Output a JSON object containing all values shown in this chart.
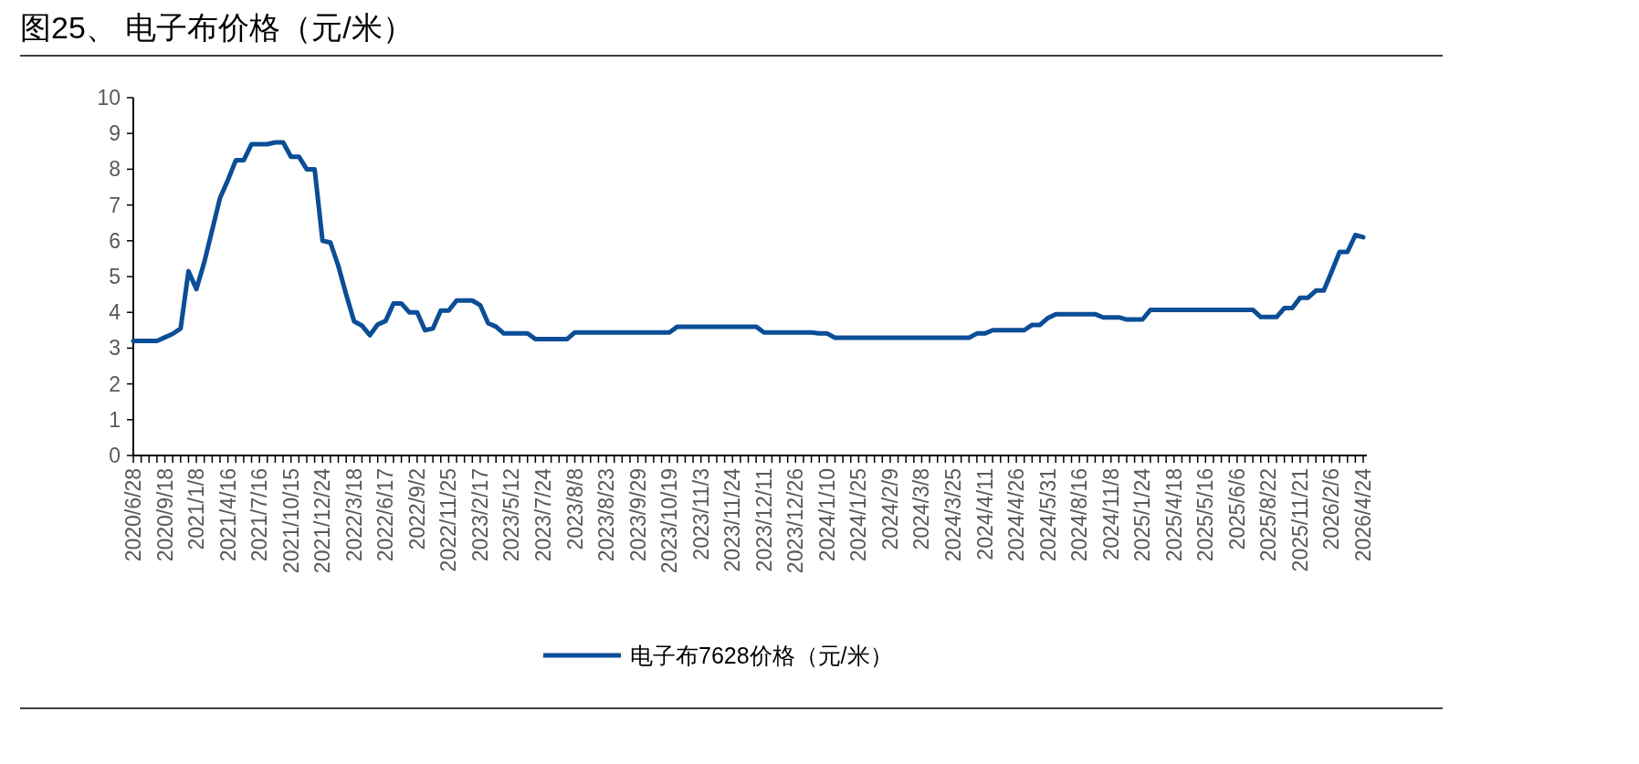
{
  "chart_data": {
    "type": "line",
    "title": "图25、 电子布价格（元/米）",
    "categories": [
      "2020/6/28",
      null,
      null,
      null,
      "2020/9/18",
      null,
      null,
      null,
      "2021/1/8",
      null,
      null,
      null,
      "2021/4/16",
      null,
      null,
      null,
      "2021/7/16",
      null,
      null,
      null,
      "2021/10/15",
      null,
      null,
      null,
      "2021/12/24",
      null,
      null,
      null,
      "2022/3/18",
      null,
      null,
      null,
      "2022/6/17",
      null,
      null,
      null,
      "2022/9/2",
      null,
      null,
      null,
      "2022/11/25",
      null,
      null,
      null,
      "2023/2/17",
      null,
      null,
      null,
      "2023/5/12",
      null,
      null,
      null,
      "2023/7/24",
      null,
      null,
      null,
      "2023/8/8",
      null,
      null,
      null,
      "2023/8/23",
      null,
      null,
      null,
      "2023/9/29",
      null,
      null,
      null,
      "2023/10/19",
      null,
      null,
      null,
      "2023/11/3",
      null,
      null,
      null,
      "2023/11/24",
      null,
      null,
      null,
      "2023/12/11",
      null,
      null,
      null,
      "2023/12/26",
      null,
      null,
      null,
      "2024/1/10",
      null,
      null,
      null,
      "2024/1/25",
      null,
      null,
      null,
      "2024/2/9",
      null,
      null,
      null,
      "2024/3/8",
      null,
      null,
      null,
      "2024/3/25",
      null,
      null,
      null,
      "2024/4/11",
      null,
      null,
      null,
      "2024/4/26",
      null,
      null,
      null,
      "2024/5/31",
      null,
      null,
      null,
      "2024/8/16",
      null,
      null,
      null,
      "2024/11/8",
      null,
      null,
      null,
      "2025/1/24",
      null,
      null,
      null,
      "2025/4/18",
      null,
      null,
      null,
      "2025/5/16",
      null,
      null,
      null,
      "2025/6/6",
      null,
      null,
      null,
      "2025/8/22",
      null,
      null,
      null,
      "2025/11/21",
      null,
      null,
      null,
      "2026/2/6",
      null,
      null,
      null,
      "2026/4/24"
    ],
    "series": [
      {
        "name": "电子布7628价格（元/米）",
        "color": "#0b4e97",
        "values": [
          3.2,
          3.2,
          3.2,
          3.2,
          3.3,
          3.4,
          3.55,
          5.15,
          4.65,
          5.4,
          6.3,
          7.2,
          7.7,
          8.25,
          8.25,
          8.7,
          8.7,
          8.7,
          8.75,
          8.75,
          8.35,
          8.35,
          8.0,
          8.0,
          6.0,
          5.95,
          5.3,
          4.5,
          3.75,
          3.63,
          3.36,
          3.66,
          3.76,
          4.25,
          4.25,
          4.0,
          4.0,
          3.5,
          3.55,
          4.05,
          4.05,
          4.33,
          4.33,
          4.33,
          4.2,
          3.7,
          3.6,
          3.41,
          3.41,
          3.41,
          3.41,
          3.25,
          3.25,
          3.25,
          3.25,
          3.25,
          3.44,
          3.44,
          3.44,
          3.44,
          3.44,
          3.44,
          3.44,
          3.44,
          3.44,
          3.44,
          3.44,
          3.44,
          3.44,
          3.6,
          3.6,
          3.6,
          3.6,
          3.6,
          3.6,
          3.6,
          3.6,
          3.6,
          3.6,
          3.6,
          3.44,
          3.44,
          3.44,
          3.44,
          3.44,
          3.44,
          3.44,
          3.41,
          3.41,
          3.29,
          3.29,
          3.29,
          3.29,
          3.29,
          3.29,
          3.29,
          3.29,
          3.29,
          3.29,
          3.29,
          3.29,
          3.29,
          3.29,
          3.29,
          3.29,
          3.29,
          3.29,
          3.41,
          3.41,
          3.5,
          3.5,
          3.5,
          3.5,
          3.5,
          3.65,
          3.65,
          3.84,
          3.95,
          3.95,
          3.95,
          3.95,
          3.95,
          3.95,
          3.86,
          3.86,
          3.86,
          3.8,
          3.8,
          3.8,
          4.07,
          4.07,
          4.07,
          4.07,
          4.07,
          4.07,
          4.07,
          4.07,
          4.07,
          4.07,
          4.07,
          4.07,
          4.07,
          4.07,
          3.87,
          3.87,
          3.87,
          4.12,
          4.12,
          4.41,
          4.41,
          4.61,
          4.61,
          5.14,
          5.69,
          5.69,
          6.16,
          6.1
        ]
      }
    ],
    "ylim": [
      0,
      10
    ],
    "yticks": [
      0,
      1,
      2,
      3,
      4,
      5,
      6,
      7,
      8,
      9,
      10
    ],
    "legend": "bottom"
  }
}
